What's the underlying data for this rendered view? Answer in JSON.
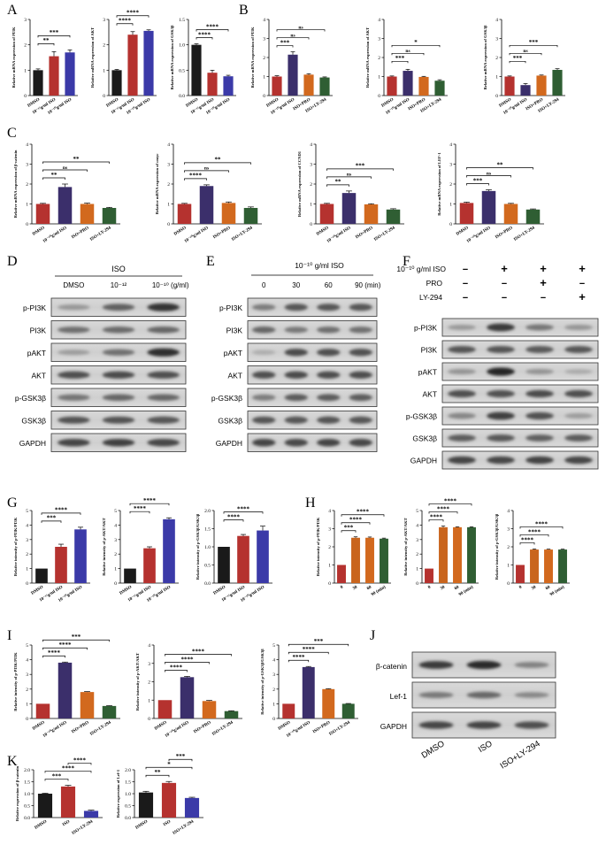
{
  "colors": {
    "black": "#1a1a1a",
    "red": "#b5322f",
    "darkblue": "#2f2d6e",
    "blue": "#3b3aa8",
    "orange": "#d2691e",
    "green": "#2f5e33",
    "purple": "#3b2f6b"
  },
  "panels": {
    "A": "A",
    "B": "B",
    "C": "C",
    "D": "D",
    "E": "E",
    "F": "F",
    "G": "G",
    "H": "H",
    "I": "I",
    "J": "J",
    "K": "K"
  },
  "chart_data": [
    {
      "id": "A1",
      "panel": "A",
      "type": "bar",
      "ylabel": "Relative mRNA expression of PI3K",
      "ylim": [
        0,
        3
      ],
      "yticks": [
        "0",
        "1",
        "2",
        "3"
      ],
      "categories": [
        "DMSO",
        "10⁻¹²g/ml ISO",
        "10⁻¹⁰g/ml ISO"
      ],
      "values": [
        1.0,
        1.55,
        1.7
      ],
      "errors": [
        0.05,
        0.18,
        0.1
      ],
      "colors": [
        "black",
        "red",
        "blue"
      ],
      "sig": [
        {
          "a": 0,
          "b": 1,
          "label": "**"
        },
        {
          "a": 0,
          "b": 2,
          "label": "***"
        }
      ]
    },
    {
      "id": "A2",
      "panel": "A",
      "type": "bar",
      "ylabel": "Relative mRNA expression of AKT",
      "ylim": [
        0,
        3
      ],
      "yticks": [
        "0",
        "1",
        "2",
        "3"
      ],
      "categories": [
        "DMSO",
        "10⁻¹²g/ml ISO",
        "10⁻¹⁰g/ml ISO"
      ],
      "values": [
        1.0,
        2.4,
        2.55
      ],
      "errors": [
        0.03,
        0.12,
        0.04
      ],
      "colors": [
        "black",
        "red",
        "blue"
      ],
      "sig": [
        {
          "a": 0,
          "b": 1,
          "label": "****"
        },
        {
          "a": 0,
          "b": 2,
          "label": "****"
        }
      ]
    },
    {
      "id": "A3",
      "panel": "A",
      "type": "bar",
      "ylabel": "Relative mRNA expression of GSK3β",
      "ylim": [
        0,
        1.5
      ],
      "yticks": [
        "0.0",
        "0.5",
        "1.0",
        "1.5"
      ],
      "categories": [
        "DMSO",
        "10⁻¹²g/ml ISO",
        "10⁻¹⁰g/ml ISO"
      ],
      "values": [
        1.0,
        0.45,
        0.38
      ],
      "errors": [
        0.02,
        0.05,
        0.02
      ],
      "colors": [
        "black",
        "red",
        "blue"
      ],
      "sig": [
        {
          "a": 0,
          "b": 1,
          "label": "****"
        },
        {
          "a": 0,
          "b": 2,
          "label": "****"
        }
      ]
    },
    {
      "id": "B1",
      "panel": "B",
      "type": "bar",
      "ylabel": "Relative mRNA expression of PI3K",
      "ylim": [
        0,
        4
      ],
      "yticks": [
        "0",
        "1",
        "2",
        "3",
        "4"
      ],
      "categories": [
        "DMSO",
        "10⁻¹⁰g/ml ISO",
        "ISO+PRO",
        "ISO+LY-294"
      ],
      "values": [
        1.0,
        2.15,
        1.1,
        0.95
      ],
      "errors": [
        0.04,
        0.15,
        0.05,
        0.03
      ],
      "colors": [
        "red",
        "purple",
        "orange",
        "green"
      ],
      "sig": [
        {
          "a": 0,
          "b": 1,
          "label": "***"
        },
        {
          "a": 0,
          "b": 2,
          "label": "ns"
        },
        {
          "a": 0,
          "b": 3,
          "label": "ns"
        }
      ]
    },
    {
      "id": "B2",
      "panel": "B",
      "type": "bar",
      "ylabel": "Relative mRNA expression of AKT",
      "ylim": [
        0,
        4
      ],
      "yticks": [
        "0",
        "1",
        "2",
        "3",
        "4"
      ],
      "categories": [
        "DMSO",
        "10⁻¹⁰g/ml ISO",
        "ISO+PRO",
        "ISO+LY-294"
      ],
      "values": [
        1.0,
        1.3,
        0.98,
        0.78
      ],
      "errors": [
        0.03,
        0.08,
        0.03,
        0.05
      ],
      "colors": [
        "red",
        "purple",
        "orange",
        "green"
      ],
      "sig": [
        {
          "a": 0,
          "b": 1,
          "label": "***"
        },
        {
          "a": 0,
          "b": 2,
          "label": "ns"
        },
        {
          "a": 0,
          "b": 3,
          "label": "*"
        }
      ]
    },
    {
      "id": "B3",
      "panel": "B",
      "type": "bar",
      "ylabel": "Relative mRNA expression of GSK3β",
      "ylim": [
        0,
        4
      ],
      "yticks": [
        "0",
        "1",
        "2",
        "3",
        "4"
      ],
      "categories": [
        "DMSO",
        "10⁻¹⁰g/ml ISO",
        "ISO+PRO",
        "ISO+LY-294"
      ],
      "values": [
        1.0,
        0.55,
        1.05,
        1.35
      ],
      "errors": [
        0.03,
        0.08,
        0.03,
        0.06
      ],
      "colors": [
        "red",
        "purple",
        "orange",
        "green"
      ],
      "sig": [
        {
          "a": 0,
          "b": 1,
          "label": "***"
        },
        {
          "a": 0,
          "b": 2,
          "label": "ns"
        },
        {
          "a": 0,
          "b": 3,
          "label": "***"
        }
      ]
    },
    {
      "id": "C1",
      "panel": "C",
      "type": "bar",
      "ylabel": "Relative mRNA expression of β-catenin",
      "ylim": [
        0,
        4
      ],
      "yticks": [
        "0",
        "1",
        "2",
        "3",
        "4"
      ],
      "categories": [
        "DMSO",
        "10⁻¹⁰g/ml ISO",
        "ISO+PRO",
        "ISO+LY-294"
      ],
      "values": [
        1.0,
        1.85,
        1.0,
        0.8
      ],
      "errors": [
        0.03,
        0.15,
        0.04,
        0.03
      ],
      "colors": [
        "red",
        "purple",
        "orange",
        "green"
      ],
      "sig": [
        {
          "a": 0,
          "b": 1,
          "label": "**"
        },
        {
          "a": 0,
          "b": 2,
          "label": "ns"
        },
        {
          "a": 0,
          "b": 3,
          "label": "**"
        }
      ]
    },
    {
      "id": "C2",
      "panel": "C",
      "type": "bar",
      "ylabel": "Relative mRNA expression of cmyc",
      "ylim": [
        0,
        4
      ],
      "yticks": [
        "0",
        "1",
        "2",
        "3",
        "4"
      ],
      "categories": [
        "DMSO",
        "10⁻¹⁰g/ml ISO",
        "ISO+PRO",
        "ISO+LY-294"
      ],
      "values": [
        1.0,
        1.9,
        1.05,
        0.8
      ],
      "errors": [
        0.03,
        0.06,
        0.05,
        0.05
      ],
      "colors": [
        "red",
        "purple",
        "orange",
        "green"
      ],
      "sig": [
        {
          "a": 0,
          "b": 1,
          "label": "****"
        },
        {
          "a": 0,
          "b": 2,
          "label": "ns"
        },
        {
          "a": 0,
          "b": 3,
          "label": "**"
        }
      ]
    },
    {
      "id": "C3",
      "panel": "C",
      "type": "bar",
      "ylabel": "Relative mRNA expression of CCND1",
      "ylim": [
        0,
        4
      ],
      "yticks": [
        "0",
        "1",
        "2",
        "3",
        "4"
      ],
      "categories": [
        "DMSO",
        "10⁻¹⁰g/ml ISO",
        "ISO+PRO",
        "ISO+LY-294"
      ],
      "values": [
        1.0,
        1.55,
        0.98,
        0.72
      ],
      "errors": [
        0.03,
        0.1,
        0.03,
        0.04
      ],
      "colors": [
        "red",
        "purple",
        "orange",
        "green"
      ],
      "sig": [
        {
          "a": 0,
          "b": 1,
          "label": "**"
        },
        {
          "a": 0,
          "b": 2,
          "label": "ns"
        },
        {
          "a": 0,
          "b": 3,
          "label": "***"
        }
      ]
    },
    {
      "id": "C4",
      "panel": "C",
      "type": "bar",
      "ylabel": "Relative mRNA expression of LEF-1",
      "ylim": [
        0,
        4
      ],
      "yticks": [
        "0",
        "1",
        "2",
        "3",
        "4"
      ],
      "categories": [
        "DMSO",
        "10⁻¹⁰g/ml ISO",
        "ISO+PRO",
        "ISO+LY-294"
      ],
      "values": [
        1.05,
        1.65,
        1.0,
        0.72
      ],
      "errors": [
        0.04,
        0.06,
        0.03,
        0.03
      ],
      "colors": [
        "red",
        "purple",
        "orange",
        "green"
      ],
      "sig": [
        {
          "a": 0,
          "b": 1,
          "label": "***"
        },
        {
          "a": 0,
          "b": 2,
          "label": "ns"
        },
        {
          "a": 0,
          "b": 3,
          "label": "**"
        }
      ]
    },
    {
      "id": "G1",
      "panel": "G",
      "type": "bar",
      "ylabel": "Relative intensity of p-PI3K/PI3K",
      "ylim": [
        0,
        5
      ],
      "yticks": [
        "0",
        "1",
        "2",
        "3",
        "4",
        "5"
      ],
      "categories": [
        "DMSO",
        "10⁻¹²g/ml ISO",
        "10⁻¹⁰g/ml ISO"
      ],
      "values": [
        1.0,
        2.5,
        3.7
      ],
      "errors": [
        0.0,
        0.18,
        0.15
      ],
      "colors": [
        "black",
        "red",
        "blue"
      ],
      "sig": [
        {
          "a": 0,
          "b": 1,
          "label": "***"
        },
        {
          "a": 0,
          "b": 2,
          "label": "****"
        }
      ]
    },
    {
      "id": "G2",
      "panel": "G",
      "type": "bar",
      "ylabel": "Relative intensity of p-AKT/AKT",
      "ylim": [
        0,
        5
      ],
      "yticks": [
        "0",
        "1",
        "2",
        "3",
        "4",
        "5"
      ],
      "categories": [
        "DMSO",
        "10⁻¹²g/ml ISO",
        "10⁻¹⁰g/ml ISO"
      ],
      "values": [
        1.0,
        2.4,
        4.4
      ],
      "errors": [
        0.0,
        0.1,
        0.1
      ],
      "colors": [
        "black",
        "red",
        "blue"
      ],
      "sig": [
        {
          "a": 0,
          "b": 1,
          "label": "****"
        },
        {
          "a": 0,
          "b": 2,
          "label": "****"
        }
      ]
    },
    {
      "id": "G3",
      "panel": "G",
      "type": "bar",
      "ylabel": "Relative intensity of p-GSK3β/GSK3β",
      "ylim": [
        0,
        2.0
      ],
      "yticks": [
        "0.0",
        "0.5",
        "1.0",
        "1.5",
        "2.0"
      ],
      "categories": [
        "DMSO",
        "10⁻¹²g/ml ISO",
        "10⁻¹⁰g/ml ISO"
      ],
      "values": [
        1.0,
        1.3,
        1.45
      ],
      "errors": [
        0.0,
        0.04,
        0.12
      ],
      "colors": [
        "black",
        "red",
        "blue"
      ],
      "sig": [
        {
          "a": 0,
          "b": 1,
          "label": "****"
        },
        {
          "a": 0,
          "b": 2,
          "label": "****"
        }
      ]
    },
    {
      "id": "H1",
      "panel": "H",
      "type": "bar",
      "ylabel": "Relative intensity of p-PI3K/PI3K",
      "ylim": [
        0,
        4
      ],
      "yticks": [
        "0",
        "1",
        "2",
        "3",
        "4"
      ],
      "categories": [
        "0",
        "30",
        "60",
        "90 (min)"
      ],
      "values": [
        1.0,
        2.5,
        2.5,
        2.45
      ],
      "errors": [
        0.0,
        0.05,
        0.04,
        0.03
      ],
      "colors": [
        "red",
        "darkorange",
        "orange",
        "green"
      ],
      "sig": [
        {
          "a": 0,
          "b": 1,
          "label": "***"
        },
        {
          "a": 0,
          "b": 2,
          "label": "****"
        },
        {
          "a": 0,
          "b": 3,
          "label": "****"
        }
      ]
    },
    {
      "id": "H2",
      "panel": "H",
      "type": "bar",
      "ylabel": "Relative intensity of p-AKT/AKT",
      "ylim": [
        0,
        5
      ],
      "yticks": [
        "0",
        "1",
        "2",
        "3",
        "4",
        "5"
      ],
      "categories": [
        "0",
        "30",
        "60",
        "90 (min)"
      ],
      "values": [
        1.0,
        3.85,
        3.85,
        3.85
      ],
      "errors": [
        0.0,
        0.08,
        0.03,
        0.03
      ],
      "colors": [
        "red",
        "darkorange",
        "orange",
        "green"
      ],
      "sig": [
        {
          "a": 0,
          "b": 1,
          "label": "****"
        },
        {
          "a": 0,
          "b": 2,
          "label": "****"
        },
        {
          "a": 0,
          "b": 3,
          "label": "****"
        }
      ]
    },
    {
      "id": "H3",
      "panel": "H",
      "type": "bar",
      "ylabel": "Relative intensity of p-GSK3β/GSK3β",
      "ylim": [
        0,
        4
      ],
      "yticks": [
        "0",
        "1",
        "2",
        "3",
        "4"
      ],
      "categories": [
        "0",
        "30",
        "60",
        "90 (min)"
      ],
      "values": [
        1.0,
        1.85,
        1.85,
        1.85
      ],
      "errors": [
        0.0,
        0.03,
        0.02,
        0.02
      ],
      "colors": [
        "red",
        "darkorange",
        "orange",
        "green"
      ],
      "sig": [
        {
          "a": 0,
          "b": 1,
          "label": "****"
        },
        {
          "a": 0,
          "b": 2,
          "label": "****"
        },
        {
          "a": 0,
          "b": 3,
          "label": "****"
        }
      ]
    },
    {
      "id": "I1",
      "panel": "I",
      "type": "bar",
      "ylabel": "Relative intensity of p-PI3K/PI3K",
      "ylim": [
        0,
        5
      ],
      "yticks": [
        "0",
        "1",
        "2",
        "3",
        "4",
        "5"
      ],
      "categories": [
        "DMSO",
        "10⁻¹⁰g/ml ISO",
        "ISO+PRO",
        "ISO+LY-294"
      ],
      "values": [
        1.0,
        3.8,
        1.8,
        0.85
      ],
      "errors": [
        0.0,
        0.04,
        0.03,
        0.02
      ],
      "colors": [
        "red",
        "purple",
        "orange",
        "green"
      ],
      "sig": [
        {
          "a": 0,
          "b": 1,
          "label": "****"
        },
        {
          "a": 0,
          "b": 2,
          "label": "****"
        },
        {
          "a": 0,
          "b": 3,
          "label": "***"
        }
      ]
    },
    {
      "id": "I2",
      "panel": "I",
      "type": "bar",
      "ylabel": "Relative intensity of p-AKT/AKT",
      "ylim": [
        0,
        4
      ],
      "yticks": [
        "0",
        "1",
        "2",
        "3",
        "4"
      ],
      "categories": [
        "DMSO",
        "10⁻¹⁰g/ml ISO",
        "ISO+PRO",
        "ISO+LY-294"
      ],
      "values": [
        1.0,
        2.25,
        0.95,
        0.4
      ],
      "errors": [
        0.0,
        0.04,
        0.03,
        0.02
      ],
      "colors": [
        "red",
        "purple",
        "orange",
        "green"
      ],
      "sig": [
        {
          "a": 0,
          "b": 1,
          "label": "****"
        },
        {
          "a": 0,
          "b": 2,
          "label": "****"
        },
        {
          "a": 0,
          "b": 3,
          "label": "****"
        }
      ]
    },
    {
      "id": "I3",
      "panel": "I",
      "type": "bar",
      "ylabel": "Relative intensity of p-GSK3β/GSK3β",
      "ylim": [
        0,
        5
      ],
      "yticks": [
        "0",
        "1",
        "2",
        "3",
        "4",
        "5"
      ],
      "categories": [
        "DMSO",
        "10⁻¹⁰g/ml ISO",
        "ISO+PRO",
        "ISO+LY-294"
      ],
      "values": [
        1.0,
        3.5,
        2.0,
        1.0
      ],
      "errors": [
        0.0,
        0.04,
        0.03,
        0.02
      ],
      "colors": [
        "red",
        "purple",
        "orange",
        "green"
      ],
      "sig": [
        {
          "a": 0,
          "b": 1,
          "label": "****"
        },
        {
          "a": 0,
          "b": 2,
          "label": "****"
        },
        {
          "a": 0,
          "b": 3,
          "label": "***"
        }
      ]
    },
    {
      "id": "K1",
      "panel": "K",
      "type": "bar",
      "ylabel": "Relative expression of β-catenin",
      "ylim": [
        0,
        2.0
      ],
      "yticks": [
        "0.0",
        "0.5",
        "1.0",
        "1.5",
        "2.0"
      ],
      "categories": [
        "DMSO",
        "ISO",
        "ISO+LY-294"
      ],
      "values": [
        1.0,
        1.3,
        0.28
      ],
      "errors": [
        0.02,
        0.05,
        0.03
      ],
      "colors": [
        "black",
        "red",
        "blue"
      ],
      "sig": [
        {
          "a": 0,
          "b": 1,
          "label": "***"
        },
        {
          "a": 0,
          "b": 2,
          "label": "****"
        },
        {
          "a": 1,
          "b": 2,
          "label": "****"
        }
      ]
    },
    {
      "id": "K2",
      "panel": "K",
      "type": "bar",
      "ylabel": "Relative expression of Lef-1",
      "ylim": [
        0,
        2.0
      ],
      "yticks": [
        "0.0",
        "0.5",
        "1.0",
        "1.5",
        "2.0"
      ],
      "categories": [
        "DMSO",
        "ISO",
        "ISO+LY-294"
      ],
      "values": [
        1.05,
        1.45,
        0.82
      ],
      "errors": [
        0.05,
        0.06,
        0.03
      ],
      "colors": [
        "black",
        "red",
        "blue"
      ],
      "sig": [
        {
          "a": 0,
          "b": 1,
          "label": "**"
        },
        {
          "a": 0,
          "b": 2,
          "label": "*"
        },
        {
          "a": 1,
          "b": 2,
          "label": "***"
        }
      ]
    }
  ],
  "blots": {
    "D": {
      "header": "ISO",
      "lanes": [
        "DMSO",
        "10⁻¹²",
        "10⁻¹⁰ (g/ml)"
      ],
      "rows": [
        "p-PI3K",
        "PI3K",
        "pAKT",
        "AKT",
        "p-GSK3β",
        "GSK3β",
        "GAPDH"
      ]
    },
    "E": {
      "header": "10⁻¹⁰ g/ml ISO",
      "lanes": [
        "0",
        "30",
        "60",
        "90  (min)"
      ],
      "rows": [
        "p-PI3K",
        "PI3K",
        "pAKT",
        "AKT",
        "p-GSK3β",
        "GSK3β",
        "GAPDH"
      ]
    },
    "F": {
      "conditions": [
        {
          "label": "10⁻¹⁰ g/ml ISO",
          "marks": [
            "−",
            "+",
            "+",
            "+"
          ]
        },
        {
          "label": "PRO",
          "marks": [
            "−",
            "−",
            "+",
            "−"
          ]
        },
        {
          "label": "LY-294",
          "marks": [
            "−",
            "−",
            "−",
            "+"
          ]
        }
      ],
      "rows": [
        "p-PI3K",
        "PI3K",
        "pAKT",
        "AKT",
        "p-GSK3β",
        "GSK3β",
        "GAPDH"
      ]
    },
    "J": {
      "rows": [
        "β-catenin",
        "Lef-1",
        "GAPDH"
      ],
      "lanes": [
        "DMSO",
        "ISO",
        "ISO+LY-294"
      ]
    }
  }
}
